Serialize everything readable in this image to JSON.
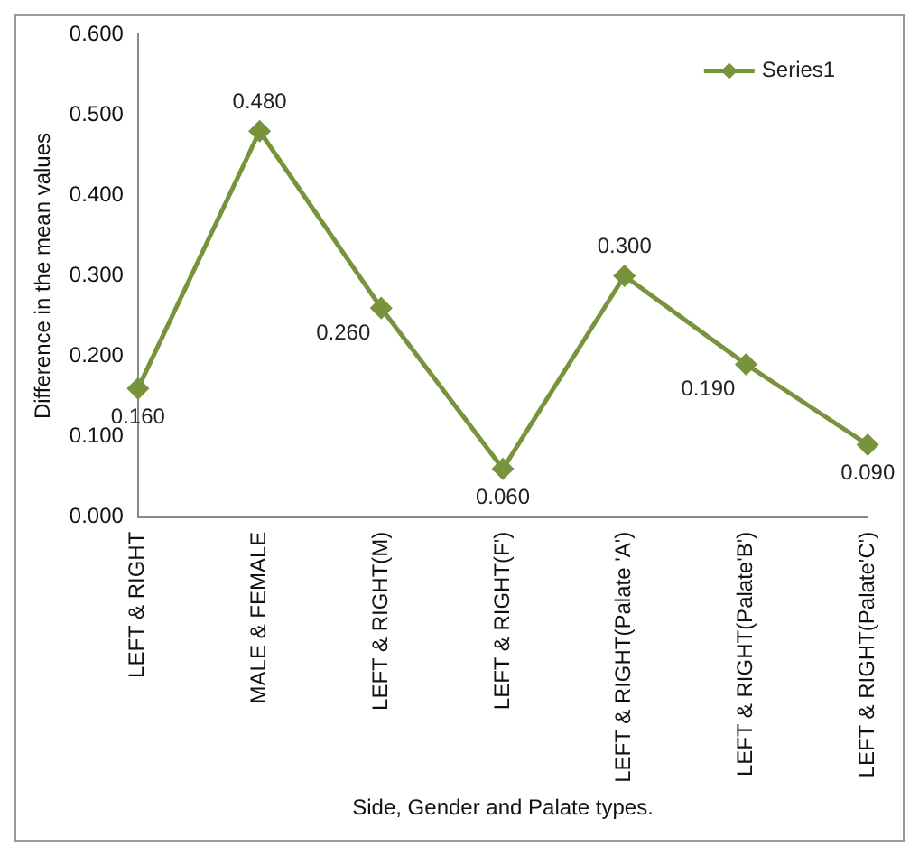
{
  "chart_data": {
    "type": "line",
    "xlabel": "Side, Gender and Palate types.",
    "ylabel": "Difference in the mean values",
    "categories": [
      "LEFT & RIGHT",
      "MALE & FEMALE",
      "LEFT & RIGHT(M)",
      "LEFT & RIGHT(F')",
      "LEFT & RIGHT(Palate 'A')",
      "LEFT & RIGHT(Palate'B')",
      "LEFT & RIGHT(Palate'C')"
    ],
    "series": [
      {
        "name": "Series1",
        "color": "#77933c",
        "values": [
          0.16,
          0.48,
          0.26,
          0.06,
          0.3,
          0.19,
          0.09
        ],
        "value_labels": [
          "0.160",
          "0.480",
          "0.260",
          "0.060",
          "0.300",
          "0.190",
          "0.090"
        ]
      }
    ],
    "ylim": [
      0,
      0.6
    ],
    "yticks": [
      {
        "value": 0,
        "label": "0.000"
      },
      {
        "value": 0.1,
        "label": "0.100"
      },
      {
        "value": 0.2,
        "label": "0.200"
      },
      {
        "value": 0.3,
        "label": "0.300"
      },
      {
        "value": 0.4,
        "label": "0.400"
      },
      {
        "value": 0.5,
        "label": "0.500"
      },
      {
        "value": 0.6,
        "label": "0.600"
      }
    ],
    "grid": false,
    "legend": "top right",
    "marker": "diamond",
    "line_style": "solid"
  }
}
